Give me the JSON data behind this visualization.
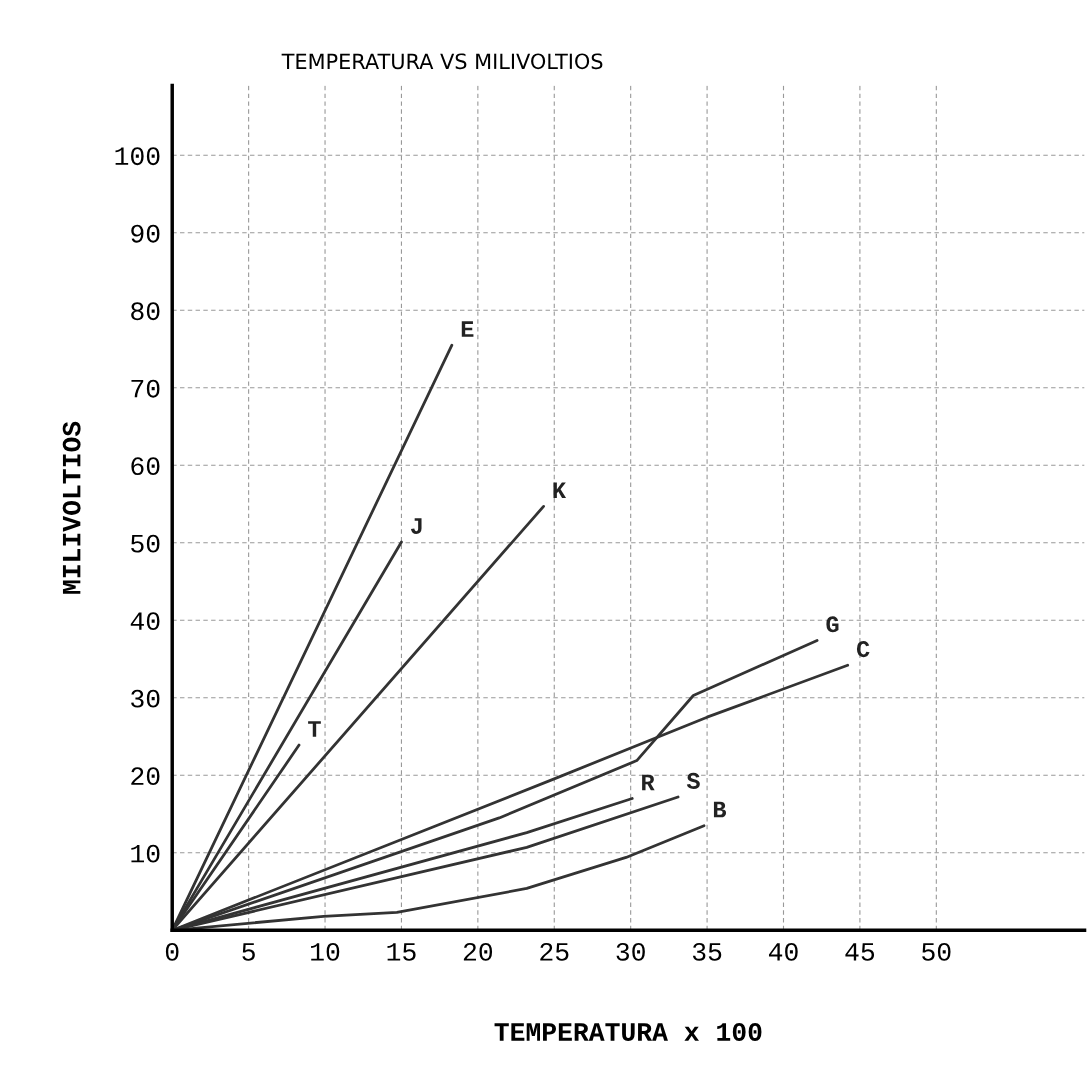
{
  "chart_data": {
    "type": "line",
    "title": "TEMPERATURA VS MILIVOLTIOS",
    "xlabel": "TEMPERATURA x 100",
    "ylabel": "MILIVOLTIOS",
    "series": [
      {
        "name": "E",
        "color": "#333333",
        "x": [
          0,
          18.3
        ],
        "values": [
          0,
          75.5
        ]
      },
      {
        "name": "J",
        "color": "#333333",
        "x": [
          0,
          15.0
        ],
        "values": [
          0,
          50.1
        ]
      },
      {
        "name": "T",
        "color": "#333333",
        "x": [
          0,
          8.3
        ],
        "values": [
          0,
          23.9
        ]
      },
      {
        "name": "K",
        "color": "#333333",
        "x": [
          0,
          24.3
        ],
        "values": [
          0,
          54.7
        ]
      },
      {
        "name": "G",
        "color": "#333333",
        "x": [
          0,
          21.4,
          30.4,
          34.1,
          42.2
        ],
        "values": [
          0,
          14.5,
          21.9,
          30.3,
          37.4
        ]
      },
      {
        "name": "C",
        "color": "#333333",
        "x": [
          0,
          25.2,
          35.0,
          44.2
        ],
        "values": [
          0,
          19.7,
          27.5,
          34.2
        ]
      },
      {
        "name": "R",
        "color": "#333333",
        "x": [
          0,
          23.2,
          30.1
        ],
        "values": [
          0,
          12.6,
          17.0
        ]
      },
      {
        "name": "S",
        "color": "#333333",
        "x": [
          0,
          23.2,
          33.1
        ],
        "values": [
          0,
          10.7,
          17.2
        ]
      },
      {
        "name": "B",
        "color": "#333333",
        "x": [
          0,
          9.9,
          14.7,
          23.2,
          29.7,
          34.8
        ],
        "values": [
          0,
          1.8,
          2.3,
          5.4,
          9.4,
          13.5
        ]
      }
    ],
    "xlim": [
      0,
      59.7
    ],
    "ylim": [
      0,
      109
    ],
    "xticks": [
      0,
      5,
      10,
      15,
      20,
      25,
      30,
      35,
      40,
      45,
      50
    ],
    "yticks": [
      10,
      20,
      30,
      40,
      50,
      60,
      70,
      80,
      90,
      100
    ],
    "grid": true,
    "legend": false,
    "line_style": "solid",
    "marker": "none"
  }
}
